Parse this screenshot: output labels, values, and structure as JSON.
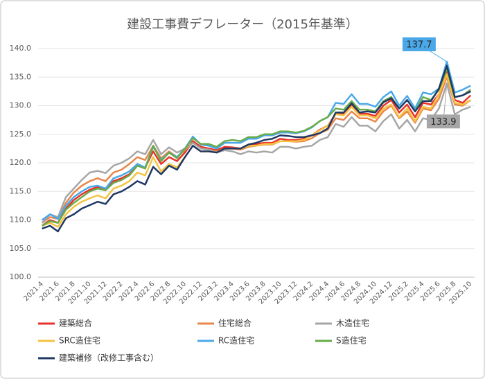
{
  "chart_data": {
    "type": "line",
    "title": "建設工事費デフレーター（2015年基準）",
    "categories": [
      "2021.4",
      null,
      "2021.6",
      null,
      "2021.8",
      null,
      "2021.10",
      null,
      "2021.12",
      null,
      "2022.2",
      null,
      "2022.4",
      null,
      "2022.6",
      null,
      "2022.8",
      null,
      "2022.10",
      null,
      "2022.12",
      null,
      "2023.2",
      null,
      "2023.4",
      null,
      "2023.6",
      null,
      "2023.8",
      null,
      "2023.10",
      null,
      "2023.12",
      null,
      "2024.2",
      null,
      "2024.4",
      null,
      "2024.6",
      null,
      "2024.8",
      null,
      "2024.10",
      null,
      "2024.12",
      null,
      "2025.2",
      null,
      "2025.4",
      null,
      "2025.6",
      null,
      "2025.8",
      null,
      "2025.10"
    ],
    "ylim": [
      100,
      140
    ],
    "yticks": [
      {
        "value": 100,
        "label": "100.0"
      },
      {
        "value": 105,
        "label": "105.0"
      },
      {
        "value": 110,
        "label": "110.0"
      },
      {
        "value": 115,
        "label": "115.0"
      },
      {
        "value": 120,
        "label": "120.0"
      },
      {
        "value": 125,
        "label": "125.0"
      },
      {
        "value": 130,
        "label": "130.0"
      },
      {
        "value": 135,
        "label": "135.0"
      },
      {
        "value": 140,
        "label": "140.0"
      }
    ],
    "grid": true,
    "series": [
      {
        "name": "建築総合",
        "color": "#e8312a",
        "values": [
          109.0,
          110.0,
          109.5,
          112.0,
          113.5,
          114.5,
          115.3,
          115.8,
          115.5,
          116.8,
          117.3,
          118.0,
          119.5,
          119.2,
          122.0,
          119.8,
          121.0,
          120.3,
          121.8,
          123.8,
          122.8,
          122.5,
          122.2,
          122.8,
          122.7,
          122.5,
          123.2,
          123.3,
          123.5,
          123.5,
          124.2,
          124.0,
          124.0,
          124.2,
          124.8,
          125.8,
          126.5,
          128.6,
          128.5,
          130.0,
          128.6,
          128.6,
          128.2,
          130.0,
          131.0,
          128.8,
          130.2,
          128.0,
          130.5,
          130.2,
          132.0,
          136.0,
          131.0,
          130.5,
          131.8
        ]
      },
      {
        "name": "住宅総合",
        "color": "#e8874a",
        "values": [
          109.5,
          110.5,
          110.2,
          113.0,
          114.8,
          116.0,
          116.8,
          117.3,
          116.8,
          118.3,
          118.8,
          119.8,
          121.0,
          120.5,
          123.0,
          120.8,
          122.0,
          121.0,
          122.2,
          123.5,
          122.5,
          122.3,
          122.0,
          122.5,
          122.5,
          122.3,
          122.8,
          123.0,
          123.2,
          123.2,
          123.8,
          123.8,
          123.7,
          123.8,
          124.3,
          125.2,
          125.8,
          127.8,
          127.5,
          129.0,
          127.8,
          127.8,
          127.2,
          129.0,
          130.0,
          127.8,
          129.0,
          127.0,
          129.5,
          129.2,
          131.2,
          135.0,
          130.2,
          130.0,
          131.0
        ]
      },
      {
        "name": "木造住宅",
        "color": "#a6a6a6",
        "values": [
          109.5,
          111.0,
          110.5,
          114.0,
          115.5,
          117.0,
          118.3,
          118.6,
          118.2,
          119.5,
          120.0,
          120.8,
          122.0,
          121.5,
          124.0,
          121.5,
          122.7,
          121.8,
          122.5,
          123.5,
          122.5,
          122.3,
          121.8,
          122.2,
          122.0,
          121.5,
          122.0,
          121.8,
          122.0,
          121.8,
          122.8,
          122.8,
          122.5,
          122.8,
          123.0,
          124.0,
          124.5,
          126.8,
          126.3,
          128.0,
          126.5,
          126.5,
          125.5,
          127.3,
          128.5,
          126.0,
          127.5,
          125.5,
          127.8,
          127.5,
          129.5,
          133.9,
          128.5,
          129.3,
          129.8
        ],
        "value_labels": [
          null,
          null,
          null,
          null,
          null,
          null,
          null,
          null,
          null,
          null,
          null,
          null,
          null,
          null,
          null,
          null,
          null,
          null,
          null,
          null,
          null,
          null,
          null,
          null,
          null,
          null,
          null,
          null,
          null,
          null,
          null,
          null,
          null,
          null,
          null,
          null,
          null,
          null,
          null,
          null,
          null,
          null,
          null,
          null,
          null,
          null,
          null,
          null,
          null,
          null,
          null,
          "133.9",
          null,
          null,
          null
        ]
      },
      {
        "name": "SRC造住宅",
        "color": "#f5c342",
        "values": [
          109.0,
          109.5,
          108.8,
          111.0,
          112.3,
          113.2,
          113.8,
          114.3,
          113.8,
          115.5,
          116.0,
          116.8,
          118.3,
          117.8,
          121.0,
          118.5,
          119.8,
          119.2,
          121.0,
          123.0,
          122.0,
          122.0,
          121.8,
          122.5,
          122.5,
          122.5,
          123.0,
          123.0,
          123.3,
          123.3,
          123.8,
          123.8,
          123.8,
          124.0,
          124.8,
          125.7,
          126.5,
          128.5,
          128.3,
          129.8,
          128.3,
          128.3,
          127.8,
          129.5,
          130.2,
          128.0,
          129.5,
          127.3,
          129.8,
          129.5,
          132.0,
          135.5,
          130.5,
          130.2,
          131.0
        ]
      },
      {
        "name": "RC造住宅",
        "color": "#4aa8e8",
        "values": [
          110.0,
          111.0,
          110.2,
          112.5,
          114.0,
          115.0,
          115.8,
          116.0,
          115.5,
          117.3,
          117.8,
          118.5,
          119.8,
          119.2,
          122.8,
          120.5,
          121.8,
          121.0,
          122.5,
          124.6,
          123.2,
          123.0,
          122.5,
          123.5,
          123.5,
          123.5,
          124.2,
          124.2,
          124.8,
          124.8,
          125.3,
          125.3,
          125.2,
          125.5,
          126.2,
          127.3,
          128.0,
          130.5,
          130.3,
          132.0,
          130.3,
          130.3,
          129.8,
          131.5,
          132.5,
          130.0,
          131.7,
          129.5,
          132.3,
          132.0,
          133.0,
          137.7,
          132.3,
          132.8,
          133.5
        ],
        "value_labels": [
          null,
          null,
          null,
          null,
          null,
          null,
          null,
          null,
          null,
          null,
          null,
          null,
          null,
          null,
          null,
          null,
          null,
          null,
          null,
          null,
          null,
          null,
          null,
          null,
          null,
          null,
          null,
          null,
          null,
          null,
          null,
          null,
          null,
          null,
          null,
          null,
          null,
          null,
          null,
          null,
          null,
          null,
          null,
          null,
          null,
          null,
          null,
          null,
          null,
          null,
          null,
          "137.7",
          null,
          null,
          null
        ]
      },
      {
        "name": "S造住宅",
        "color": "#6aab4a",
        "values": [
          109.0,
          109.8,
          109.5,
          111.8,
          113.0,
          114.0,
          115.0,
          115.5,
          115.2,
          116.5,
          117.0,
          117.8,
          119.5,
          119.0,
          123.0,
          120.3,
          121.8,
          120.8,
          122.5,
          124.3,
          123.3,
          123.3,
          122.8,
          123.8,
          124.0,
          123.8,
          124.5,
          124.5,
          125.0,
          125.0,
          125.5,
          125.5,
          125.3,
          125.6,
          126.3,
          127.3,
          128.0,
          129.5,
          129.3,
          130.8,
          129.3,
          129.3,
          129.0,
          130.8,
          131.5,
          129.5,
          131.0,
          129.0,
          131.5,
          131.0,
          132.8,
          136.5,
          131.5,
          131.8,
          132.8
        ]
      },
      {
        "name": "建築補修（改修工事含む）",
        "color": "#1f3864",
        "values": [
          108.5,
          109.0,
          108.0,
          110.3,
          111.0,
          112.0,
          112.6,
          113.2,
          112.8,
          114.5,
          115.0,
          115.8,
          116.8,
          116.2,
          119.3,
          118.0,
          119.5,
          118.8,
          121.0,
          123.0,
          122.0,
          122.0,
          121.8,
          122.5,
          122.5,
          122.5,
          123.2,
          123.5,
          124.0,
          124.2,
          124.8,
          124.7,
          124.5,
          124.5,
          124.8,
          125.2,
          126.0,
          128.8,
          128.8,
          130.4,
          128.8,
          129.0,
          128.8,
          130.6,
          131.3,
          129.5,
          131.0,
          129.0,
          130.8,
          130.8,
          133.0,
          137.0,
          131.5,
          131.8,
          132.5
        ]
      }
    ]
  }
}
